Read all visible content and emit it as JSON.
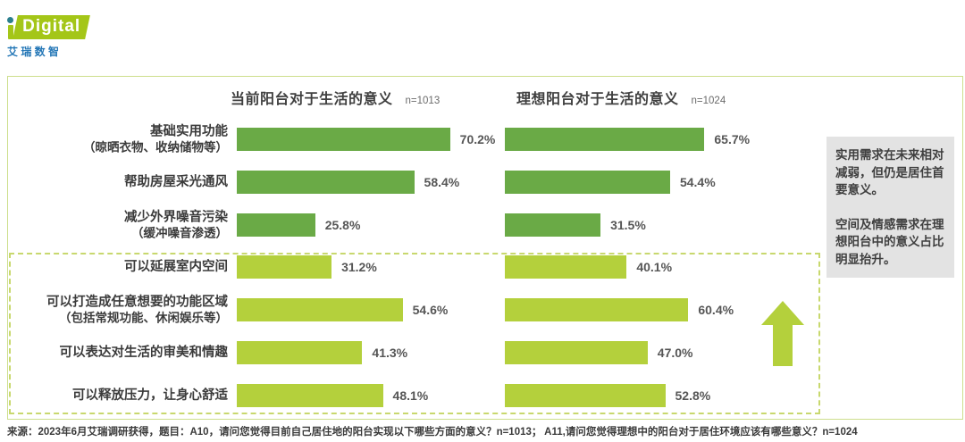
{
  "logo": {
    "brand_i": "i",
    "brand": "Digital",
    "subtitle": "艾 瑞 数 智"
  },
  "left_chart": {
    "title": "当前阳台对于生活的意义",
    "n_label": "n=1013"
  },
  "right_chart": {
    "title": "理想阳台对于生活的意义",
    "n_label": "n=1024"
  },
  "chart_data": {
    "type": "bar",
    "orientation": "horizontal",
    "unit": "%",
    "categories": [
      {
        "label": "基础实用功能",
        "sub": "（晾晒衣物、收纳储物等）",
        "group": "practical"
      },
      {
        "label": "帮助房屋采光通风",
        "sub": "",
        "group": "practical"
      },
      {
        "label": "减少外界噪音污染",
        "sub": "（缓冲噪音渗透）",
        "group": "practical"
      },
      {
        "label": "可以延展室内空间",
        "sub": "",
        "group": "highlight"
      },
      {
        "label": "可以打造成任意想要的功能区域",
        "sub": "（包括常规功能、休闲娱乐等）",
        "group": "highlight"
      },
      {
        "label": "可以表达对生活的审美和情趣",
        "sub": "",
        "group": "highlight"
      },
      {
        "label": "可以释放压力，让身心舒适",
        "sub": "",
        "group": "highlight"
      }
    ],
    "series": [
      {
        "name": "当前阳台对于生活的意义",
        "n": 1013,
        "values": [
          70.2,
          58.4,
          25.8,
          31.2,
          54.6,
          41.3,
          48.1
        ]
      },
      {
        "name": "理想阳台对于生活的意义",
        "n": 1024,
        "values": [
          65.7,
          54.4,
          31.5,
          40.1,
          60.4,
          47.0,
          52.8
        ]
      }
    ],
    "xlim": [
      0,
      75
    ],
    "grid": false,
    "legend": "none",
    "highlighted_rows_note": "rows 4-7 enclosed in dashed box with upward arrow",
    "colors": {
      "practical_bar": "#6aaa46",
      "highlight_bar": "#b4d03c",
      "dashed_border": "#c8d86e",
      "frame_border": "#cdde8c",
      "arrow": "#b4d03c"
    }
  },
  "annotation_box": {
    "paragraph1": "实用需求在未来相对减弱，但仍是居住首要意义。",
    "paragraph2": "空间及情感需求在理想阳台中的意义占比明显抬升。"
  },
  "source_note": "来源：2023年6月艾瑞调研获得，题目：A10，请问您觉得目前自己居住地的阳台实现以下哪些方面的意义？n=1013； A11,请问您觉得理想中的阳台对于居住环境应该有哪些意义？n=1024"
}
